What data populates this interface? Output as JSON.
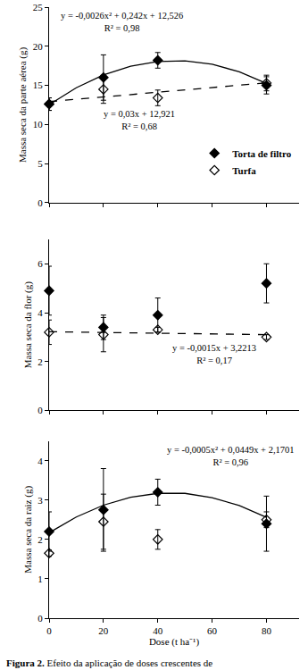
{
  "chart_data": [
    {
      "type": "scatter",
      "y_label": "Massa seca da parte aérea (g)",
      "xlim": [
        0,
        92
      ],
      "xticks": [
        0,
        20,
        40,
        60,
        80
      ],
      "ylim": [
        0,
        25
      ],
      "yticks": [
        0,
        5,
        10,
        15,
        20,
        25
      ],
      "tick_labels": "y",
      "legend": "lower right",
      "x": [
        0,
        20,
        40,
        80
      ],
      "series": [
        {
          "type": "line",
          "line_style": "solid",
          "color": "#000000",
          "x": [
            0,
            10,
            20,
            30,
            40,
            50,
            60,
            70,
            80
          ],
          "values": [
            12.53,
            14.69,
            16.33,
            17.45,
            18.05,
            18.13,
            17.7,
            16.73,
            15.25
          ]
        },
        {
          "type": "line",
          "line_style": "dash",
          "color": "#000000",
          "x": [
            0,
            80
          ],
          "values": [
            12.92,
            15.32
          ]
        },
        {
          "name": "Torta de filtro",
          "type": "scatter",
          "marker": "diamond",
          "color": "#000000",
          "values": [
            12.6,
            16.0,
            18.2,
            15.0
          ],
          "error": [
            0.8,
            2.9,
            1.0,
            1.1
          ]
        },
        {
          "name": "Turfa",
          "type": "scatter",
          "marker": "diamond-open",
          "color": "#000000",
          "values": [
            12.6,
            14.5,
            13.4,
            15.3
          ],
          "error": [
            0.8,
            1.8,
            1.0,
            1.0
          ]
        }
      ],
      "annotations": [
        [
          "y = -0,0026x² + 0,242x + 12,526",
          "R² = 0,98"
        ],
        [
          "y = 0,03x + 12,921",
          "R² = 0,68"
        ]
      ]
    },
    {
      "type": "scatter",
      "y_label": "Massa seca da flor (g)",
      "xlim": [
        0,
        92
      ],
      "xticks": [
        0,
        20,
        40,
        60,
        80
      ],
      "ylim": [
        0,
        7
      ],
      "yticks": [
        0,
        2,
        4,
        6
      ],
      "tick_labels": "y",
      "x": [
        0,
        20,
        40,
        80
      ],
      "series": [
        {
          "type": "line",
          "line_style": "dash",
          "color": "#000000",
          "x": [
            0,
            80
          ],
          "values": [
            3.22,
            3.1
          ]
        },
        {
          "name": "Torta de filtro",
          "type": "scatter",
          "marker": "diamond",
          "color": "#000000",
          "values": [
            4.9,
            3.4,
            3.9,
            5.2
          ],
          "error": [
            1.0,
            0.5,
            0.7,
            0.8
          ]
        },
        {
          "name": "Turfa",
          "type": "scatter",
          "marker": "diamond-open",
          "color": "#000000",
          "values": [
            3.2,
            3.1,
            3.3,
            3.0
          ],
          "error": [
            0.5,
            0.7,
            0.1,
            0.1
          ]
        }
      ],
      "annotations": [
        [
          "y = -0,0015x + 3,2213",
          "R² = 0,17"
        ]
      ]
    },
    {
      "type": "scatter",
      "y_label": "Massa seca da raiz (g)",
      "x_label": "Dose (t ha⁻¹)",
      "xlim": [
        0,
        92
      ],
      "xticks": [
        0,
        20,
        40,
        60,
        80
      ],
      "ylim": [
        0,
        4.5
      ],
      "yticks": [
        0,
        1,
        2,
        3,
        4
      ],
      "x": [
        0,
        20,
        40,
        80
      ],
      "series": [
        {
          "type": "line",
          "line_style": "solid",
          "color": "#000000",
          "x": [
            0,
            10,
            20,
            30,
            40,
            50,
            60,
            70,
            80
          ],
          "values": [
            2.17,
            2.57,
            2.87,
            3.07,
            3.17,
            3.17,
            3.06,
            2.86,
            2.56
          ]
        },
        {
          "name": "Torta de filtro",
          "type": "scatter",
          "marker": "diamond",
          "color": "#000000",
          "values": [
            2.2,
            2.75,
            3.2,
            2.4
          ],
          "error": [
            0.5,
            1.05,
            0.33,
            0.7
          ]
        },
        {
          "name": "Turfa",
          "type": "scatter",
          "marker": "diamond-open",
          "color": "#000000",
          "values": [
            1.65,
            2.45,
            2.0,
            2.5
          ],
          "error": [
            0.08,
            0.7,
            0.25,
            0.2
          ]
        }
      ],
      "annotations": [
        [
          "y = -0,0005x² + 0,0449x + 2,1701",
          "R² = 0,96"
        ]
      ]
    }
  ],
  "caption": {
    "label": "Figura 2.",
    "text": "Efeito da aplicação de doses crescentes de"
  }
}
